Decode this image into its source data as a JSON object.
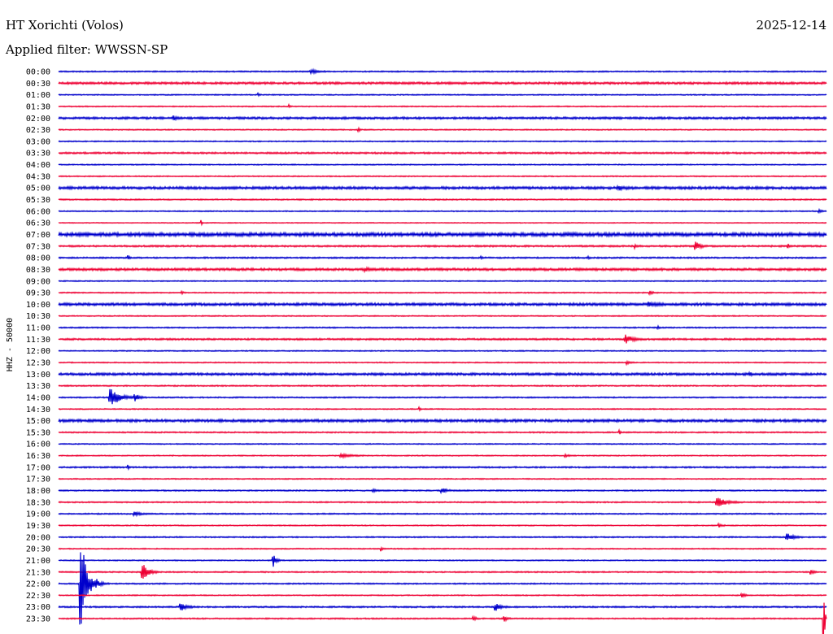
{
  "chart_data": {
    "type": "line",
    "title": "HT Xorichti (Volos)",
    "subtitle": "Applied filter: WWSSN-SP",
    "date": "2025-12-14",
    "ylabel": "HHZ - 50000",
    "colors": [
      "#0000cc",
      "#ee0033"
    ],
    "rows": [
      {
        "label": "00:00",
        "noise": 0.6,
        "events": [
          [
            33,
            2,
            2
          ]
        ]
      },
      {
        "label": "00:30",
        "noise": 1.0,
        "events": []
      },
      {
        "label": "01:00",
        "noise": 0.5,
        "events": [
          [
            26,
            0.5,
            2
          ]
        ]
      },
      {
        "label": "01:30",
        "noise": 0.5,
        "events": [
          [
            30,
            0.5,
            2
          ]
        ]
      },
      {
        "label": "02:00",
        "noise": 1.0,
        "events": [
          [
            15,
            1,
            2
          ]
        ]
      },
      {
        "label": "02:30",
        "noise": 0.5,
        "events": [
          [
            39,
            0.5,
            4
          ]
        ]
      },
      {
        "label": "03:00",
        "noise": 0.5,
        "events": []
      },
      {
        "label": "03:30",
        "noise": 0.8,
        "events": []
      },
      {
        "label": "04:00",
        "noise": 0.5,
        "events": []
      },
      {
        "label": "04:30",
        "noise": 0.5,
        "events": []
      },
      {
        "label": "05:00",
        "noise": 1.2,
        "events": [
          [
            73,
            2,
            2
          ]
        ]
      },
      {
        "label": "05:30",
        "noise": 0.6,
        "events": []
      },
      {
        "label": "06:00",
        "noise": 0.5,
        "events": [
          [
            99,
            1,
            2
          ]
        ]
      },
      {
        "label": "06:30",
        "noise": 0.4,
        "events": [
          [
            18.5,
            0.3,
            7
          ]
        ]
      },
      {
        "label": "07:00",
        "noise": 1.6,
        "events": []
      },
      {
        "label": "07:30",
        "noise": 0.8,
        "events": [
          [
            75,
            0.6,
            2
          ],
          [
            83,
            1.5,
            5
          ],
          [
            95,
            0.6,
            2
          ]
        ]
      },
      {
        "label": "08:00",
        "noise": 0.7,
        "events": [
          [
            9,
            0.6,
            3
          ],
          [
            55,
            0.5,
            2
          ],
          [
            69,
            0.5,
            2
          ]
        ]
      },
      {
        "label": "08:30",
        "noise": 1.1,
        "events": [
          [
            40,
            1.5,
            2
          ]
        ]
      },
      {
        "label": "09:00",
        "noise": 0.5,
        "events": []
      },
      {
        "label": "09:30",
        "noise": 0.5,
        "events": [
          [
            16,
            0.5,
            2
          ],
          [
            77,
            1,
            2
          ]
        ]
      },
      {
        "label": "10:00",
        "noise": 1.2,
        "events": [
          [
            77,
            2,
            2
          ]
        ]
      },
      {
        "label": "10:30",
        "noise": 0.5,
        "events": []
      },
      {
        "label": "11:00",
        "noise": 0.6,
        "events": [
          [
            78,
            0.5,
            2
          ]
        ]
      },
      {
        "label": "11:30",
        "noise": 0.8,
        "events": [
          [
            74,
            2,
            5
          ]
        ]
      },
      {
        "label": "12:00",
        "noise": 0.5,
        "events": []
      },
      {
        "label": "12:30",
        "noise": 0.5,
        "events": [
          [
            74,
            1,
            2
          ]
        ]
      },
      {
        "label": "13:00",
        "noise": 1.1,
        "events": [
          [
            90,
            0.5,
            2
          ]
        ]
      },
      {
        "label": "13:30",
        "noise": 0.6,
        "events": []
      },
      {
        "label": "14:00",
        "noise": 0.6,
        "events": [
          [
            7,
            3,
            10
          ],
          [
            10,
            1.5,
            4
          ]
        ]
      },
      {
        "label": "14:30",
        "noise": 0.5,
        "events": [
          [
            47,
            0.5,
            2
          ]
        ]
      },
      {
        "label": "15:00",
        "noise": 1.2,
        "events": []
      },
      {
        "label": "15:30",
        "noise": 0.6,
        "events": [
          [
            73,
            0.3,
            5
          ]
        ]
      },
      {
        "label": "16:00",
        "noise": 0.5,
        "events": []
      },
      {
        "label": "16:30",
        "noise": 0.5,
        "events": [
          [
            37,
            3,
            2
          ],
          [
            66,
            1,
            2
          ]
        ]
      },
      {
        "label": "17:00",
        "noise": 0.7,
        "events": [
          [
            9,
            0.3,
            5
          ]
        ]
      },
      {
        "label": "17:30",
        "noise": 0.5,
        "events": []
      },
      {
        "label": "18:00",
        "noise": 0.6,
        "events": [
          [
            41,
            1,
            2
          ],
          [
            50,
            1.5,
            3
          ]
        ]
      },
      {
        "label": "18:30",
        "noise": 0.6,
        "events": [
          [
            86,
            3,
            5
          ]
        ]
      },
      {
        "label": "19:00",
        "noise": 0.6,
        "events": [
          [
            10,
            2,
            2
          ]
        ]
      },
      {
        "label": "19:30",
        "noise": 0.5,
        "events": [
          [
            86,
            1,
            2
          ]
        ]
      },
      {
        "label": "20:00",
        "noise": 0.6,
        "events": [
          [
            95,
            2,
            4
          ]
        ]
      },
      {
        "label": "20:30",
        "noise": 0.5,
        "events": [
          [
            42,
            0.5,
            3
          ]
        ]
      },
      {
        "label": "21:00",
        "noise": 0.5,
        "events": [
          [
            28,
            1,
            8
          ]
        ]
      },
      {
        "label": "21:30",
        "noise": 0.6,
        "events": [
          [
            11,
            2,
            10
          ],
          [
            98,
            1,
            3
          ]
        ]
      },
      {
        "label": "22:00",
        "noise": 0.6,
        "events": [
          [
            3,
            2,
            55
          ],
          [
            5,
            1.5,
            5
          ]
        ]
      },
      {
        "label": "22:30",
        "noise": 0.5,
        "events": [
          [
            89,
            1,
            3
          ]
        ]
      },
      {
        "label": "23:00",
        "noise": 0.7,
        "events": [
          [
            16,
            2,
            4
          ],
          [
            57,
            1.5,
            4
          ]
        ]
      },
      {
        "label": "23:30",
        "noise": 0.6,
        "events": [
          [
            54,
            1,
            3
          ],
          [
            58,
            1,
            4
          ],
          [
            99.6,
            0.4,
            60
          ]
        ]
      }
    ]
  }
}
